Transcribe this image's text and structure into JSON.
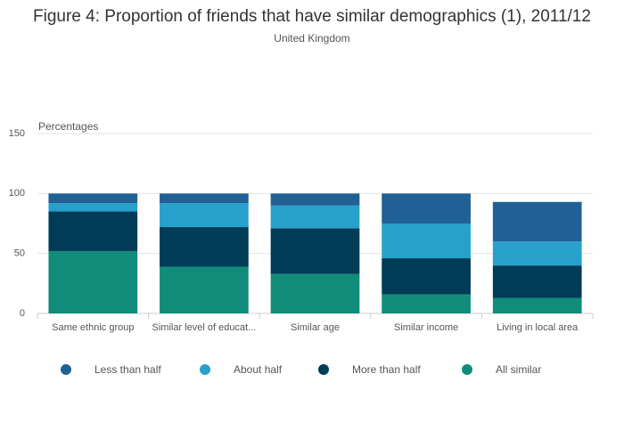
{
  "chart_data": {
    "type": "stacked_bar",
    "title": "Figure 4: Proportion of friends that have similar demographics (1), 2011/12",
    "subtitle": "United Kingdom",
    "y_label": "Percentages",
    "categories": [
      "Same ethnic group",
      "Similar level of educat...",
      "Similar age",
      "Similar income",
      "Living in local area"
    ],
    "series": [
      {
        "name": "Less than half",
        "color": "#206095",
        "values": [
          8,
          8,
          10,
          25,
          33
        ]
      },
      {
        "name": "About half",
        "color": "#27a0cc",
        "values": [
          7,
          20,
          19,
          29,
          20
        ]
      },
      {
        "name": "More than half",
        "color": "#003c57",
        "values": [
          33,
          33,
          38,
          30,
          27
        ]
      },
      {
        "name": "All similar",
        "color": "#118c7b",
        "values": [
          52,
          39,
          33,
          16,
          13
        ]
      }
    ],
    "ylim": [
      0,
      150
    ],
    "yticks": [
      0,
      50,
      100,
      150
    ],
    "grid": true
  }
}
